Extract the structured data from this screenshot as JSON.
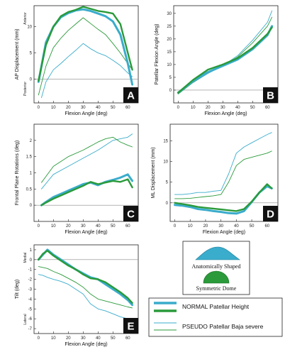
{
  "colors": {
    "cyan": "#3aaccc",
    "green": "#2a9a3a",
    "grid": "#888888",
    "badge": "#111111"
  },
  "legend": {
    "shapes": {
      "anatomic_label": "Anatomically Shaped",
      "dome_label": "Symmetric Dome"
    },
    "heights": {
      "normal_label": "NORMAL Patellar Height",
      "pseudo_label": "PSEUDO Patellar Baja severe"
    }
  },
  "chart_data": [
    {
      "id": "A",
      "type": "line",
      "badge": "A",
      "xlabel": "Flexion Angle (deg)",
      "ylabel": "AP Displacement (mm)",
      "side_top": "Anterior",
      "side_bottom": "Posterior",
      "xlim": [
        -3,
        67
      ],
      "ylim": [
        -4.5,
        14
      ],
      "xticks": [
        0,
        10,
        20,
        30,
        40,
        50,
        60
      ],
      "yticks": [
        0,
        5,
        10
      ],
      "series": [
        {
          "style": "normal-anatomic",
          "x": [
            0,
            5,
            10,
            15,
            20,
            25,
            30,
            35,
            40,
            45,
            50,
            55,
            60,
            63
          ],
          "y": [
            -0.5,
            7,
            10,
            11.8,
            12.6,
            13.1,
            13.3,
            13.0,
            12.5,
            12.0,
            11.0,
            8.5,
            3,
            -1
          ]
        },
        {
          "style": "normal-dome",
          "x": [
            0,
            5,
            10,
            15,
            20,
            25,
            30,
            35,
            40,
            45,
            50,
            55,
            60,
            63
          ],
          "y": [
            -0.3,
            6.5,
            10,
            12.0,
            12.8,
            13.2,
            13.8,
            13.4,
            13.0,
            12.8,
            12.5,
            10.5,
            5,
            1.8
          ]
        },
        {
          "style": "pseudo-anatomic",
          "x": [
            2,
            5,
            10,
            15,
            20,
            25,
            30,
            35,
            40,
            45,
            50,
            55,
            60,
            63
          ],
          "y": [
            -3.5,
            -0.5,
            1.8,
            3,
            4.3,
            5.5,
            6.8,
            5.8,
            5,
            4.5,
            3.6,
            2.6,
            1.2,
            0.5
          ]
        },
        {
          "style": "pseudo-dome",
          "x": [
            0,
            5,
            10,
            15,
            20,
            25,
            30,
            35,
            40,
            45,
            50,
            55,
            60,
            63
          ],
          "y": [
            -3,
            2.5,
            6,
            7.8,
            9.3,
            10.5,
            11.7,
            10.6,
            9.5,
            8.5,
            6.8,
            5,
            3,
            1.8
          ]
        }
      ]
    },
    {
      "id": "B",
      "type": "line",
      "badge": "B",
      "xlabel": "Flexion Angle (deg)",
      "ylabel": "Patellar Flexion Angle (deg)",
      "xlim": [
        -3,
        67
      ],
      "ylim": [
        -5,
        33
      ],
      "xticks": [
        0,
        10,
        20,
        30,
        40,
        50,
        60
      ],
      "yticks": [
        0,
        5,
        10,
        15,
        20,
        25,
        30
      ],
      "series": [
        {
          "style": "normal-anatomic",
          "x": [
            0,
            10,
            20,
            30,
            40,
            50,
            60,
            63
          ],
          "y": [
            -1,
            3.5,
            7,
            9.5,
            12,
            16,
            21.5,
            25
          ]
        },
        {
          "style": "normal-dome",
          "x": [
            0,
            10,
            20,
            30,
            40,
            50,
            60,
            63
          ],
          "y": [
            -1,
            4,
            8,
            10,
            12.5,
            16.5,
            22,
            24.5
          ]
        },
        {
          "style": "pseudo-anatomic",
          "x": [
            0,
            10,
            20,
            30,
            40,
            50,
            60,
            63
          ],
          "y": [
            -1.5,
            3,
            6.5,
            9.5,
            13.5,
            19.5,
            26.5,
            31
          ]
        },
        {
          "style": "pseudo-dome",
          "x": [
            0,
            10,
            20,
            30,
            40,
            50,
            60,
            63
          ],
          "y": [
            -1.5,
            3,
            6.8,
            9.6,
            13,
            18.5,
            25,
            28.5
          ]
        }
      ]
    },
    {
      "id": "C",
      "type": "line",
      "badge": "C",
      "xlabel": "Flexion Angle (deg)",
      "ylabel": "Frontal Plane Rotations (deg)",
      "xlim": [
        -3,
        67
      ],
      "ylim": [
        -0.5,
        2.5
      ],
      "xticks": [
        0,
        10,
        20,
        30,
        40,
        50,
        60
      ],
      "yticks": [
        0,
        0.5,
        1,
        1.5,
        2
      ],
      "series": [
        {
          "style": "normal-anatomic",
          "x": [
            2,
            5,
            10,
            15,
            20,
            25,
            30,
            35,
            40,
            45,
            50,
            55,
            60,
            63
          ],
          "y": [
            0,
            0.1,
            0.25,
            0.35,
            0.45,
            0.55,
            0.65,
            0.7,
            0.62,
            0.72,
            0.78,
            0.85,
            0.95,
            0.75
          ]
        },
        {
          "style": "normal-dome",
          "x": [
            2,
            5,
            10,
            15,
            20,
            25,
            30,
            35,
            40,
            45,
            50,
            55,
            60,
            63
          ],
          "y": [
            0,
            0.08,
            0.2,
            0.3,
            0.4,
            0.5,
            0.6,
            0.72,
            0.65,
            0.7,
            0.75,
            0.72,
            0.8,
            0.55
          ]
        },
        {
          "style": "pseudo-anatomic",
          "x": [
            2,
            10,
            20,
            30,
            40,
            50,
            55,
            60,
            63
          ],
          "y": [
            0.5,
            0.95,
            1.2,
            1.45,
            1.7,
            2.0,
            2.05,
            2.1,
            2.2
          ]
        },
        {
          "style": "pseudo-dome",
          "x": [
            2,
            10,
            20,
            30,
            40,
            45,
            50,
            55,
            60,
            63
          ],
          "y": [
            0.7,
            1.2,
            1.5,
            1.7,
            1.95,
            2.05,
            2.1,
            1.95,
            1.85,
            1.8
          ]
        }
      ]
    },
    {
      "id": "D",
      "type": "line",
      "badge": "D",
      "xlabel": "Flexion Angle (deg)",
      "ylabel": "ML Displacement (mm)",
      "xlim": [
        -3,
        67
      ],
      "ylim": [
        -4.5,
        19
      ],
      "xticks": [
        0,
        10,
        20,
        30,
        40,
        50,
        60
      ],
      "yticks": [
        0,
        5,
        10,
        15
      ],
      "series": [
        {
          "style": "normal-anatomic",
          "x": [
            0,
            5,
            10,
            15,
            20,
            25,
            30,
            35,
            40,
            45,
            50,
            55,
            60,
            63
          ],
          "y": [
            -0.5,
            -0.7,
            -1,
            -1.5,
            -1.7,
            -2,
            -2.2,
            -2.5,
            -2.6,
            -2,
            0.2,
            2.5,
            4,
            3.5
          ]
        },
        {
          "style": "normal-dome",
          "x": [
            0,
            5,
            10,
            15,
            20,
            25,
            30,
            35,
            40,
            45,
            50,
            55,
            60,
            63
          ],
          "y": [
            0,
            -0.3,
            -0.6,
            -1,
            -1.2,
            -1.4,
            -1.6,
            -1.8,
            -2,
            -1.5,
            0.3,
            2.5,
            4.5,
            3.5
          ]
        },
        {
          "style": "pseudo-anatomic",
          "x": [
            0,
            5,
            10,
            15,
            20,
            25,
            30,
            35,
            40,
            45,
            50,
            55,
            60,
            63
          ],
          "y": [
            2,
            2,
            2.2,
            2.5,
            2.5,
            2.8,
            3,
            7,
            12,
            13.5,
            14.5,
            15.5,
            16.5,
            17
          ]
        },
        {
          "style": "pseudo-dome",
          "x": [
            0,
            5,
            10,
            15,
            20,
            25,
            30,
            35,
            40,
            45,
            50,
            55,
            60,
            63
          ],
          "y": [
            1,
            1,
            1.1,
            1.3,
            1.5,
            1.7,
            2,
            5,
            9,
            10.5,
            11,
            11.5,
            12,
            12.5
          ]
        }
      ]
    },
    {
      "id": "E",
      "type": "line",
      "badge": "E",
      "xlabel": "Flexion Angle (deg)",
      "ylabel": "Tilt (deg)",
      "side_top": "Medial",
      "side_bottom": "Lateral",
      "xlim": [
        -3,
        67
      ],
      "ylim": [
        -7.5,
        1.5
      ],
      "xticks": [
        0,
        10,
        20,
        30,
        40,
        50,
        60
      ],
      "yticks": [
        1,
        0,
        -1,
        -2,
        -3,
        -4,
        -5,
        -6,
        -7
      ],
      "series": [
        {
          "style": "normal-anatomic",
          "x": [
            0,
            3,
            6,
            10,
            15,
            20,
            25,
            30,
            35,
            40,
            45,
            50,
            55,
            60,
            63
          ],
          "y": [
            0,
            0.5,
            1,
            0.5,
            0,
            -0.5,
            -1,
            -1.4,
            -1.8,
            -2,
            -2.5,
            -3,
            -3.5,
            -4.1,
            -4.6
          ]
        },
        {
          "style": "normal-dome",
          "x": [
            0,
            3,
            6,
            10,
            15,
            20,
            25,
            30,
            35,
            40,
            45,
            50,
            55,
            60,
            63
          ],
          "y": [
            0,
            0.6,
            0.9,
            0.4,
            -0.1,
            -0.6,
            -1,
            -1.5,
            -1.9,
            -2,
            -2.3,
            -2.8,
            -3.3,
            -3.9,
            -4.4
          ]
        },
        {
          "style": "pseudo-anatomic",
          "x": [
            0,
            3,
            6,
            10,
            15,
            20,
            25,
            30,
            35,
            40,
            45,
            50,
            55,
            60,
            63
          ],
          "y": [
            -1.5,
            -1.6,
            -1.8,
            -2,
            -2.2,
            -2.5,
            -3,
            -3.5,
            -4.5,
            -5,
            -5.2,
            -5.5,
            -5.8,
            -6,
            -6
          ]
        },
        {
          "style": "pseudo-dome",
          "x": [
            0,
            3,
            6,
            10,
            15,
            20,
            25,
            30,
            35,
            40,
            45,
            50,
            55,
            60,
            63
          ],
          "y": [
            -0.7,
            -0.8,
            -0.9,
            -1.2,
            -1.5,
            -1.9,
            -2.3,
            -2.8,
            -3.5,
            -4,
            -4.2,
            -4.4,
            -4.6,
            -4.8,
            -4.9
          ]
        }
      ]
    }
  ]
}
